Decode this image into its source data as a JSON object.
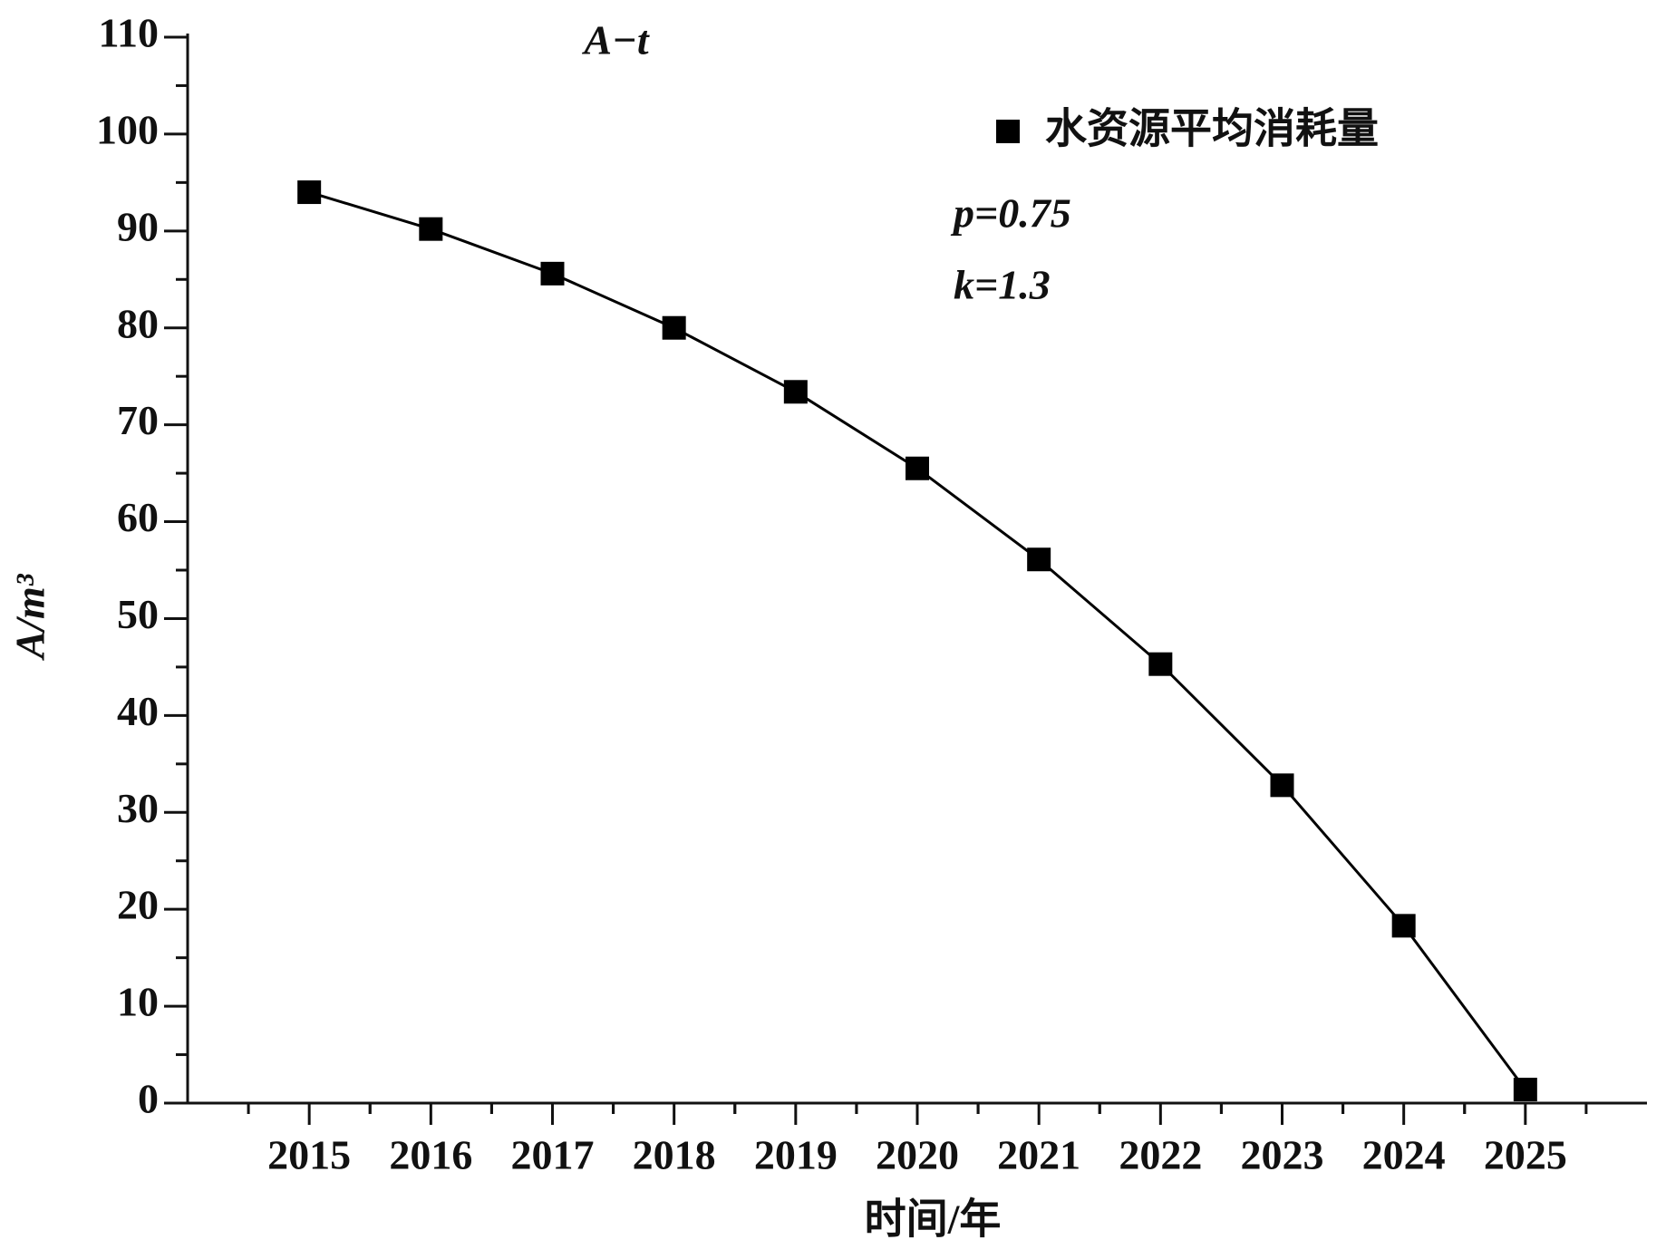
{
  "chart_data": {
    "type": "line",
    "title": "A−t",
    "x_label": "时间/年",
    "y_label": "A/m³",
    "annotations": [
      "p=0.75",
      "k=1.3"
    ],
    "x": [
      2015,
      2016,
      2017,
      2018,
      2019,
      2020,
      2021,
      2022,
      2023,
      2024,
      2025
    ],
    "series": [
      {
        "name": "水资源平均消耗量",
        "color": "#000000",
        "values": [
          94,
          90.2,
          85.6,
          80.0,
          73.4,
          65.5,
          56.1,
          45.3,
          32.8,
          18.3,
          1.4
        ]
      }
    ],
    "xlim": [
      2014,
      2026
    ],
    "xticks": [
      2015,
      2016,
      2017,
      2018,
      2019,
      2020,
      2021,
      2022,
      2023,
      2024,
      2025
    ],
    "ylim": [
      0,
      110
    ],
    "yticks": [
      0,
      10,
      20,
      30,
      40,
      50,
      60,
      70,
      80,
      90,
      100,
      110
    ],
    "legend": "top-right",
    "grid": false
  }
}
